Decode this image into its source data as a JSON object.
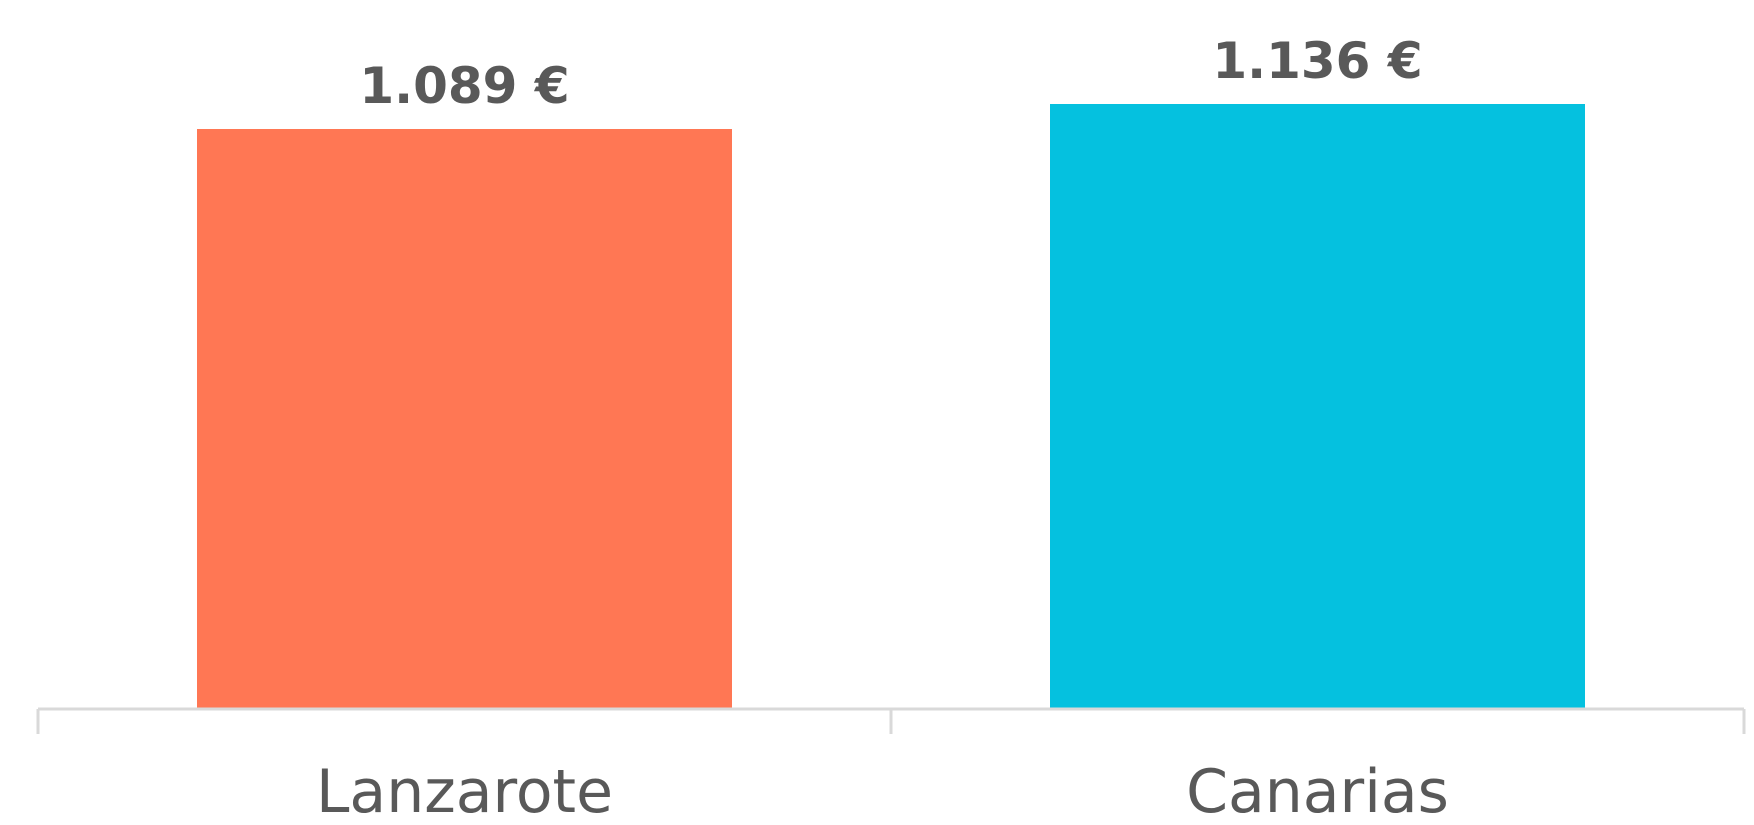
{
  "chart_data": {
    "type": "bar",
    "categories": [
      "Lanzarote",
      "Canarias"
    ],
    "values": [
      1089,
      1136
    ],
    "data_labels": [
      "1.089 €",
      "1.136 €"
    ],
    "colors": [
      "#FF7754",
      "#05C1DF"
    ],
    "title": "",
    "xlabel": "",
    "ylabel": "",
    "ylim": [
      0,
      1136
    ],
    "grid": false,
    "legend": "none"
  }
}
